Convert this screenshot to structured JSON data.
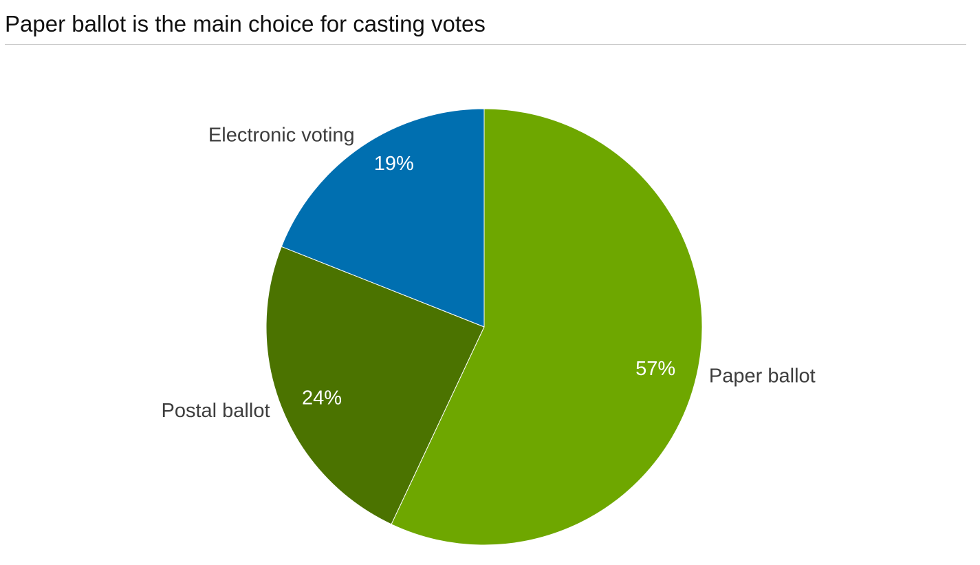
{
  "chart_data": {
    "type": "pie",
    "title": "Paper ballot is the main choice for casting votes",
    "categories": [
      "Paper ballot",
      "Postal ballot",
      "Electronic voting"
    ],
    "values": [
      57,
      24,
      19
    ],
    "value_labels": [
      "57%",
      "24%",
      "19%"
    ],
    "unit": "%",
    "start": "12 o'clock",
    "direction": "clockwise",
    "colors": [
      "#6ea700",
      "#4b7300",
      "#006fb0"
    ],
    "legend": "none (direct labels)"
  }
}
